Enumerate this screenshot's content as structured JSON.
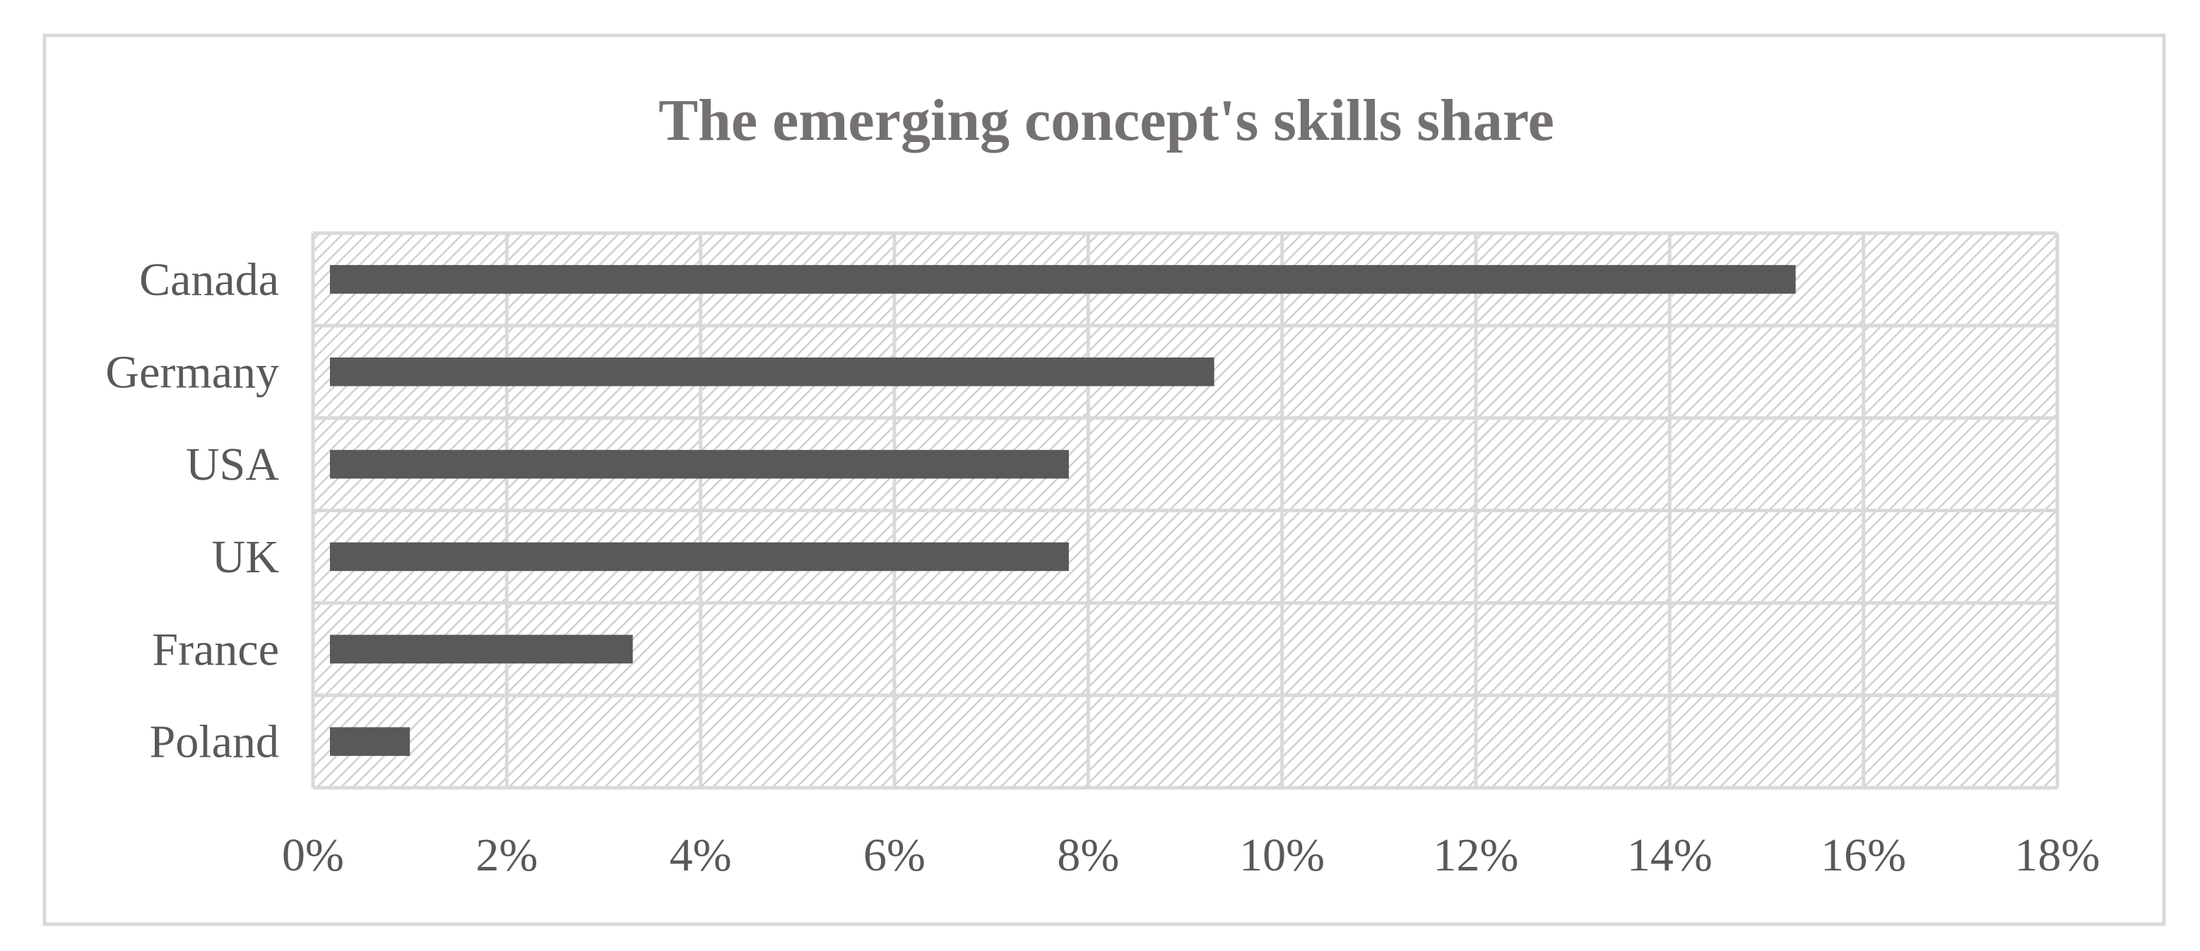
{
  "chart_data": {
    "type": "bar",
    "orientation": "horizontal",
    "title": "The emerging concept's skills share",
    "categories": [
      "Canada",
      "Germany",
      "USA",
      "UK",
      "France",
      "Poland"
    ],
    "values": [
      15.3,
      9.3,
      7.8,
      7.8,
      3.3,
      1.0
    ],
    "value_unit": "%",
    "xlim": [
      0,
      18
    ],
    "x_ticks": [
      "0%",
      "2%",
      "4%",
      "6%",
      "8%",
      "10%",
      "12%",
      "14%",
      "16%",
      "18%"
    ],
    "grid": true,
    "legend": "none",
    "xlabel": "",
    "ylabel": "",
    "colors": {
      "bar": "#595959",
      "grid": "#d9d9d9",
      "hatch": "#d0d0d0",
      "frame": "#d9d9d9",
      "title": "#757171",
      "text": "#595959"
    }
  }
}
